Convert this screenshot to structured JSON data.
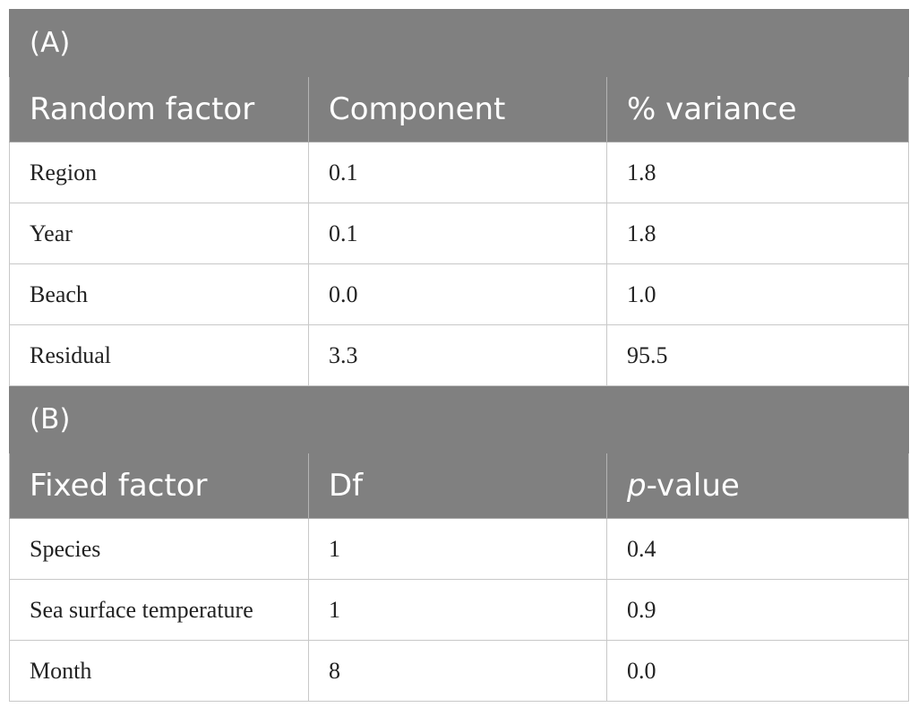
{
  "section_a": {
    "label": "(A)",
    "headers": [
      "Random factor",
      "Component",
      "% variance"
    ],
    "rows": [
      [
        "Region",
        "0.1",
        "1.8"
      ],
      [
        "Year",
        "0.1",
        "1.8"
      ],
      [
        "Beach",
        "0.0",
        "1.0"
      ],
      [
        "Residual",
        "3.3",
        "95.5"
      ]
    ]
  },
  "section_b": {
    "label": "(B)",
    "headers": [
      "Fixed factor",
      "Df"
    ],
    "pvalue_header": {
      "italic": "p",
      "rest": "-value"
    },
    "rows": [
      [
        "Species",
        "1",
        "0.4"
      ],
      [
        "Sea surface temperature",
        "1",
        "0.9"
      ],
      [
        "Month",
        "8",
        "0.0"
      ]
    ]
  }
}
